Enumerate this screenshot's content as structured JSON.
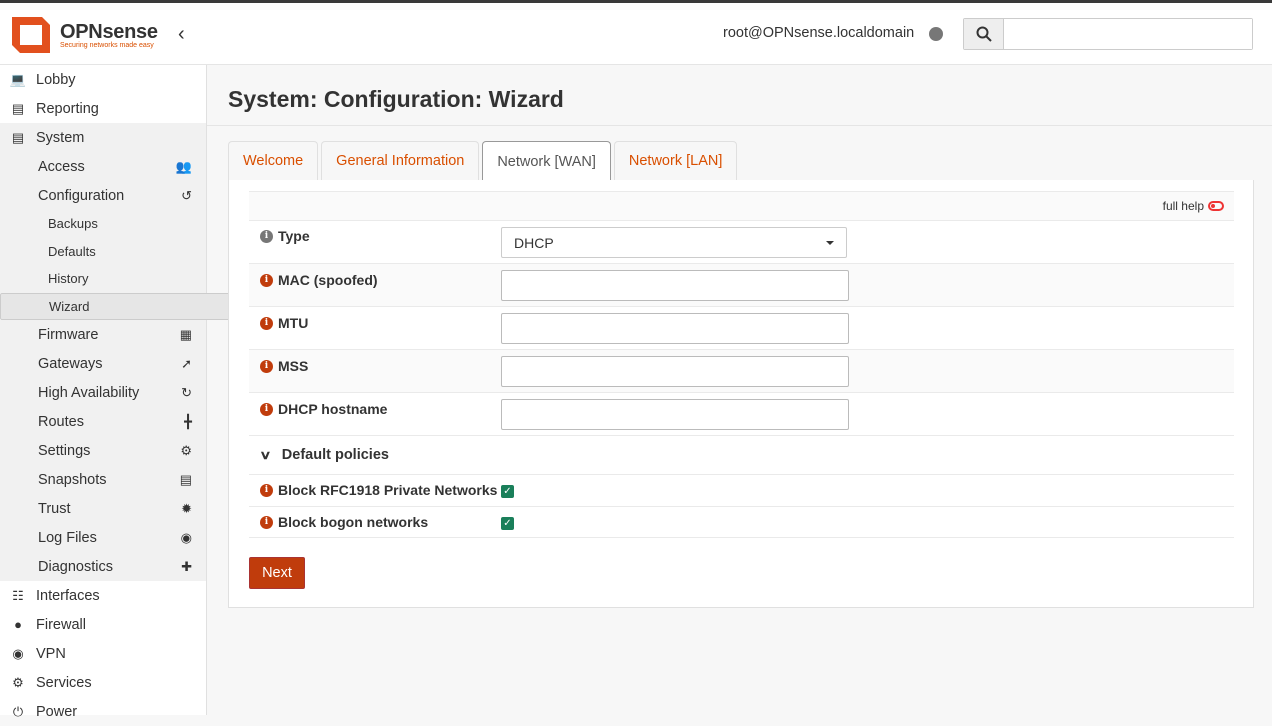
{
  "header": {
    "brand": "OPNsense",
    "tagline": "Securing networks made easy",
    "user": "root@OPNsense.localdomain",
    "search_placeholder": ""
  },
  "sidebar": {
    "items": [
      {
        "label": "Lobby",
        "icon": "laptop-icon"
      },
      {
        "label": "Reporting",
        "icon": "chart-icon"
      },
      {
        "label": "System",
        "icon": "server-icon"
      },
      {
        "label": "Access",
        "icon": "users-icon"
      },
      {
        "label": "Configuration",
        "icon": "history-icon"
      },
      {
        "label": "Backups"
      },
      {
        "label": "Defaults"
      },
      {
        "label": "History"
      },
      {
        "label": "Wizard"
      },
      {
        "label": "Firmware",
        "icon": "building-icon"
      },
      {
        "label": "Gateways",
        "icon": "location-arrow-icon"
      },
      {
        "label": "High Availability",
        "icon": "refresh-icon"
      },
      {
        "label": "Routes",
        "icon": "signs-icon"
      },
      {
        "label": "Settings",
        "icon": "cogs-icon"
      },
      {
        "label": "Snapshots",
        "icon": "hdd-icon"
      },
      {
        "label": "Trust",
        "icon": "certificate-icon"
      },
      {
        "label": "Log Files",
        "icon": "eye-icon"
      },
      {
        "label": "Diagnostics",
        "icon": "medkit-icon"
      },
      {
        "label": "Interfaces",
        "icon": "sitemap-icon"
      },
      {
        "label": "Firewall",
        "icon": "fire-icon"
      },
      {
        "label": "VPN",
        "icon": "globe-icon"
      },
      {
        "label": "Services",
        "icon": "cog-icon"
      },
      {
        "label": "Power",
        "icon": "plug-icon"
      }
    ]
  },
  "page": {
    "title": "System: Configuration: Wizard",
    "tabs": [
      "Welcome",
      "General Information",
      "Network [WAN]",
      "Network [LAN]"
    ],
    "full_help": "full help",
    "fields": {
      "type": {
        "label": "Type",
        "value": "DHCP"
      },
      "mac": {
        "label": "MAC (spoofed)",
        "value": ""
      },
      "mtu": {
        "label": "MTU",
        "value": ""
      },
      "mss": {
        "label": "MSS",
        "value": ""
      },
      "hostname": {
        "label": "DHCP hostname",
        "value": ""
      }
    },
    "section": "Default policies",
    "rfc1918": {
      "label": "Block RFC1918 Private Networks",
      "checked": true
    },
    "bogon": {
      "label": "Block bogon networks",
      "checked": true
    },
    "next": "Next"
  },
  "colors": {
    "accent": "#d94f00",
    "button": "#c03c0c",
    "checkbox": "#1a7f5a"
  }
}
